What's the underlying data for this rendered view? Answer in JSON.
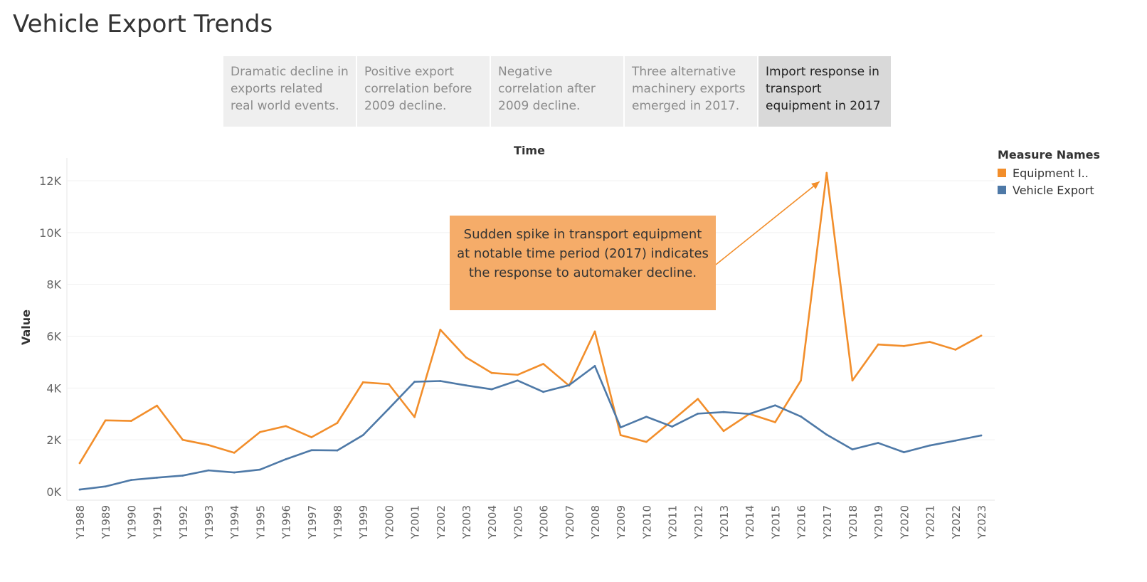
{
  "title": "Vehicle Export Trends",
  "story_points": [
    {
      "label": "Dramatic decline in exports related real world events.",
      "active": false
    },
    {
      "label": "Positive export correlation before 2009 decline.",
      "active": false
    },
    {
      "label": "Negative correlation after 2009 decline.",
      "active": false
    },
    {
      "label": "Three alternative machinery exports emerged in 2017.",
      "active": false
    },
    {
      "label": "Import response in transport equipment in 2017",
      "active": true
    }
  ],
  "legend": {
    "title": "Measure Names",
    "items": [
      {
        "label": "Equipment I..",
        "color": "#f28e2b"
      },
      {
        "label": "Vehicle Export",
        "color": "#4e79a7"
      }
    ]
  },
  "annotation": {
    "text": "Sudden spike in transport equipment at notable time period (2017) indicates the response to automaker decline.",
    "target_category": "Y2017"
  },
  "chart_data": {
    "type": "line",
    "title": "Time",
    "xlabel": "",
    "ylabel": "Value",
    "ylim": [
      0,
      12800
    ],
    "yticks": [
      {
        "value": 0,
        "label": "0K"
      },
      {
        "value": 2000,
        "label": "2K"
      },
      {
        "value": 4000,
        "label": "4K"
      },
      {
        "value": 6000,
        "label": "6K"
      },
      {
        "value": 8000,
        "label": "8K"
      },
      {
        "value": 10000,
        "label": "10K"
      },
      {
        "value": 12000,
        "label": "12K"
      }
    ],
    "grid": true,
    "legend_position": "right",
    "categories": [
      "Y1988",
      "Y1989",
      "Y1990",
      "Y1991",
      "Y1992",
      "Y1993",
      "Y1994",
      "Y1995",
      "Y1996",
      "Y1997",
      "Y1998",
      "Y1999",
      "Y2000",
      "Y2001",
      "Y2002",
      "Y2003",
      "Y2004",
      "Y2005",
      "Y2006",
      "Y2007",
      "Y2008",
      "Y2009",
      "Y2010",
      "Y2011",
      "Y2012",
      "Y2013",
      "Y2014",
      "Y2015",
      "Y2016",
      "Y2017",
      "Y2018",
      "Y2019",
      "Y2020",
      "Y2021",
      "Y2022",
      "Y2023"
    ],
    "series": [
      {
        "name": "Equipment I..",
        "color": "#f28e2b",
        "values": [
          1100,
          2750,
          2730,
          3320,
          2000,
          1800,
          1500,
          2300,
          2530,
          2100,
          2650,
          4220,
          4150,
          2880,
          6250,
          5180,
          4580,
          4510,
          4930,
          4090,
          6180,
          2180,
          1920,
          2740,
          3580,
          2340,
          3000,
          2680,
          4290,
          12300,
          4290,
          5680,
          5620,
          5780,
          5480,
          6020
        ]
      },
      {
        "name": "Vehicle Export",
        "color": "#4e79a7",
        "values": [
          80,
          200,
          450,
          540,
          620,
          820,
          740,
          850,
          1250,
          1600,
          1590,
          2180,
          3200,
          4240,
          4270,
          4100,
          3950,
          4290,
          3850,
          4110,
          4850,
          2480,
          2890,
          2510,
          3010,
          3070,
          3000,
          3330,
          2900,
          2200,
          1630,
          1880,
          1520,
          1780,
          1970,
          2170
        ]
      }
    ]
  }
}
